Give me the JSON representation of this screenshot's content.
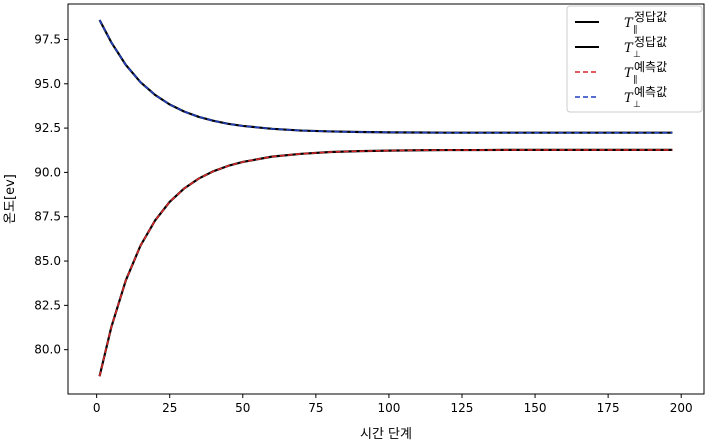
{
  "chart_data": {
    "type": "line",
    "xlabel": "시간 단계",
    "ylabel": "온도[ev]",
    "xlim": [
      -9.8,
      207.8
    ],
    "ylim": [
      77.5,
      99.5
    ],
    "xticks": [
      0,
      25,
      50,
      75,
      100,
      125,
      150,
      175,
      200
    ],
    "yticks": [
      80.0,
      82.5,
      85.0,
      87.5,
      90.0,
      92.5,
      95.0,
      97.5
    ],
    "xtick_labels": [
      "0",
      "25",
      "50",
      "75",
      "100",
      "125",
      "150",
      "175",
      "200"
    ],
    "ytick_labels": [
      "80.0",
      "82.5",
      "85.0",
      "87.5",
      "90.0",
      "92.5",
      "95.0",
      "97.5"
    ],
    "grid": false,
    "legend_position": "top-right",
    "x": [
      1,
      5,
      10,
      15,
      20,
      25,
      30,
      35,
      40,
      45,
      50,
      60,
      70,
      80,
      90,
      100,
      110,
      120,
      130,
      140,
      150,
      160,
      170,
      180,
      190,
      197
    ],
    "series": [
      {
        "name": "정답값",
        "symbol": "T",
        "subscript": "∥",
        "color": "#000000",
        "style": "solid",
        "values": [
          78.5,
          81.26,
          83.92,
          85.87,
          87.29,
          88.34,
          89.1,
          89.66,
          90.07,
          90.37,
          90.59,
          90.89,
          91.05,
          91.15,
          91.2,
          91.23,
          91.25,
          91.26,
          91.26,
          91.27,
          91.27,
          91.27,
          91.27,
          91.27,
          91.27,
          91.27
        ]
      },
      {
        "name": "정답값",
        "symbol": "T",
        "subscript": "⊥",
        "color": "#000000",
        "style": "solid",
        "values": [
          98.6,
          97.34,
          96.06,
          95.09,
          94.37,
          93.83,
          93.43,
          93.13,
          92.91,
          92.74,
          92.62,
          92.46,
          92.36,
          92.31,
          92.28,
          92.26,
          92.25,
          92.24,
          92.24,
          92.24,
          92.24,
          92.24,
          92.24,
          92.24,
          92.24,
          92.24
        ]
      },
      {
        "name": "예측값",
        "symbol": "T",
        "subscript": "∥",
        "color": "#d62728",
        "style": "dashed",
        "values": [
          78.5,
          81.26,
          83.92,
          85.87,
          87.29,
          88.34,
          89.1,
          89.66,
          90.07,
          90.37,
          90.59,
          90.89,
          91.05,
          91.15,
          91.2,
          91.23,
          91.25,
          91.26,
          91.26,
          91.27,
          91.27,
          91.27,
          91.27,
          91.27,
          91.27,
          91.27
        ]
      },
      {
        "name": "예측값",
        "symbol": "T",
        "subscript": "⊥",
        "color": "#1f3fbf",
        "style": "dashed",
        "values": [
          98.6,
          97.34,
          96.06,
          95.09,
          94.37,
          93.83,
          93.43,
          93.13,
          92.91,
          92.74,
          92.62,
          92.46,
          92.36,
          92.31,
          92.28,
          92.26,
          92.25,
          92.24,
          92.24,
          92.24,
          92.24,
          92.24,
          92.24,
          92.24,
          92.24,
          92.24
        ]
      }
    ]
  }
}
